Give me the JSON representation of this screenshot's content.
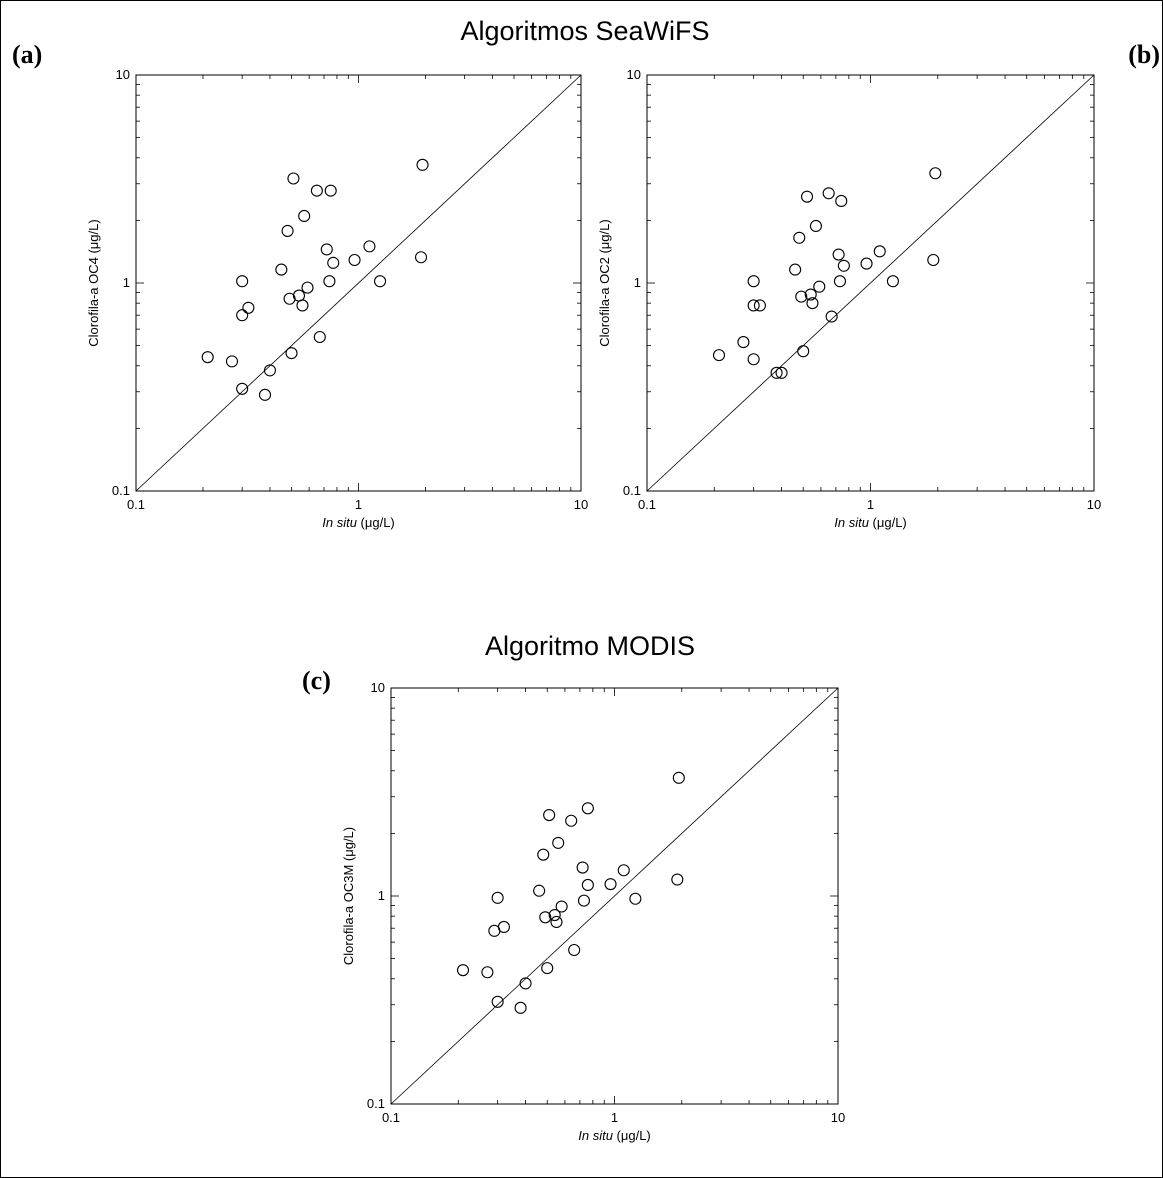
{
  "figure": {
    "title_top": "Algoritmos SeaWiFS",
    "title_bottom": "Algoritmo MODIS"
  },
  "chart_data": [
    {
      "type": "scatter",
      "panel_label": "(a)",
      "xlabel": {
        "italic": "In situ",
        "unit": " (μg/L)"
      },
      "ylabel": "Clorofila-a OC4 (μg/L)",
      "xscale": "log",
      "yscale": "log",
      "xlim": [
        0.1,
        10
      ],
      "ylim": [
        0.1,
        10
      ],
      "x_ticks": [
        "0.1",
        "1",
        "10"
      ],
      "y_ticks": [
        "0.1",
        "1",
        "10"
      ],
      "reference_line": "1:1",
      "x": [
        0.21,
        0.27,
        0.3,
        0.3,
        0.3,
        0.32,
        0.38,
        0.4,
        0.45,
        0.48,
        0.49,
        0.5,
        0.51,
        0.54,
        0.56,
        0.57,
        0.59,
        0.65,
        0.67,
        0.72,
        0.74,
        0.75,
        0.77,
        0.96,
        1.12,
        1.25,
        1.91,
        1.94
      ],
      "y": [
        0.44,
        0.42,
        0.31,
        0.7,
        1.02,
        0.76,
        0.29,
        0.38,
        1.16,
        1.78,
        0.84,
        0.46,
        3.18,
        0.87,
        0.78,
        2.1,
        0.95,
        2.78,
        0.55,
        1.45,
        1.02,
        2.78,
        1.25,
        1.29,
        1.5,
        1.02,
        1.33,
        3.7
      ]
    },
    {
      "type": "scatter",
      "panel_label": "(b)",
      "xlabel": {
        "italic": "In situ",
        "unit": " (μg/L)"
      },
      "ylabel": "Clorofila-a OC2 (μg/L)",
      "xscale": "log",
      "yscale": "log",
      "xlim": [
        0.1,
        10
      ],
      "ylim": [
        0.1,
        10
      ],
      "x_ticks": [
        "0.1",
        "1",
        "10"
      ],
      "y_ticks": [
        "0.1",
        "1",
        "10"
      ],
      "reference_line": "1:1",
      "x": [
        0.21,
        0.27,
        0.3,
        0.3,
        0.3,
        0.32,
        0.38,
        0.4,
        0.46,
        0.48,
        0.49,
        0.5,
        0.52,
        0.54,
        0.55,
        0.57,
        0.59,
        0.65,
        0.67,
        0.72,
        0.73,
        0.74,
        0.76,
        0.96,
        1.1,
        1.26,
        1.91,
        1.95
      ],
      "y": [
        0.45,
        0.52,
        0.43,
        0.78,
        1.02,
        0.78,
        0.37,
        0.37,
        1.16,
        1.65,
        0.86,
        0.47,
        2.6,
        0.88,
        0.8,
        1.88,
        0.96,
        2.7,
        0.69,
        1.37,
        1.02,
        2.48,
        1.21,
        1.24,
        1.42,
        1.02,
        1.29,
        3.37
      ]
    },
    {
      "type": "scatter",
      "panel_label": "(c)",
      "xlabel": {
        "italic": "In situ",
        "unit": " (μg/L)"
      },
      "ylabel": "Clorofila-a OC3M (μg/L)",
      "xscale": "log",
      "yscale": "log",
      "xlim": [
        0.1,
        10
      ],
      "ylim": [
        0.1,
        10
      ],
      "x_ticks": [
        "0.1",
        "1",
        "10"
      ],
      "y_ticks": [
        "0.1",
        "1",
        "10"
      ],
      "reference_line": "1:1",
      "x": [
        0.21,
        0.27,
        0.29,
        0.3,
        0.3,
        0.32,
        0.38,
        0.4,
        0.46,
        0.48,
        0.49,
        0.5,
        0.51,
        0.54,
        0.55,
        0.56,
        0.58,
        0.64,
        0.66,
        0.72,
        0.73,
        0.76,
        0.76,
        0.96,
        1.1,
        1.24,
        1.91,
        1.94
      ],
      "y": [
        0.44,
        0.43,
        0.68,
        0.31,
        0.98,
        0.71,
        0.29,
        0.38,
        1.06,
        1.58,
        0.79,
        0.45,
        2.45,
        0.81,
        0.75,
        1.8,
        0.89,
        2.3,
        0.55,
        1.37,
        0.95,
        2.64,
        1.13,
        1.14,
        1.33,
        0.97,
        1.2,
        3.7
      ]
    }
  ]
}
